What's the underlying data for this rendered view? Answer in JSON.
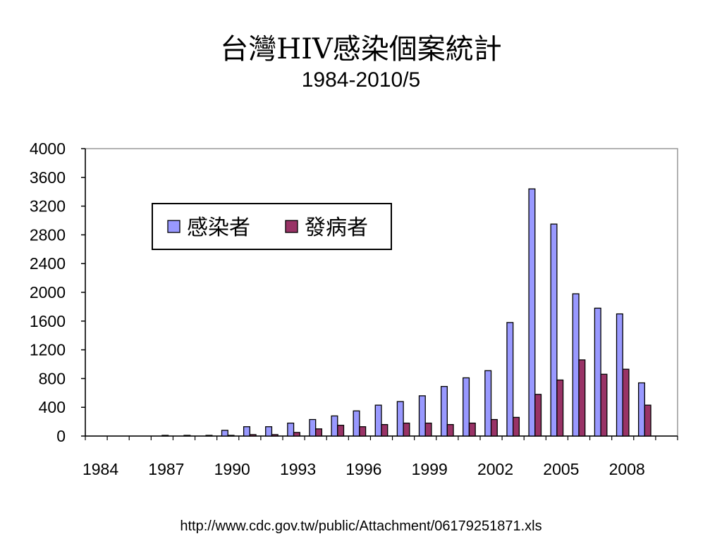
{
  "header": {
    "title": "台灣HIV感染個案統計",
    "subtitle": "1984-2010/5"
  },
  "source": {
    "text": "http://www.cdc.gov.tw/public/Attachment/06179251871.xls"
  },
  "chart_data": {
    "type": "bar",
    "categories": [
      "1984",
      "1985",
      "1986",
      "1987",
      "1988",
      "1989",
      "1990",
      "1991",
      "1992",
      "1993",
      "1994",
      "1995",
      "1996",
      "1997",
      "1998",
      "1999",
      "2000",
      "2001",
      "2002",
      "2003",
      "2004",
      "2005",
      "2006",
      "2007",
      "2008",
      "2009",
      "2010"
    ],
    "x_tick_labels": [
      "1984",
      "1987",
      "1990",
      "1993",
      "1996",
      "1999",
      "2002",
      "2005",
      "2008"
    ],
    "series": [
      {
        "name": "感染者",
        "color": "#9999ff",
        "values": [
          0,
          0,
          0,
          0,
          0,
          0,
          80,
          130,
          130,
          180,
          230,
          280,
          350,
          430,
          480,
          560,
          690,
          810,
          910,
          1580,
          3440,
          2950,
          1980,
          1780,
          1700,
          740,
          0
        ]
      },
      {
        "name": "發病者",
        "color": "#993366",
        "values": [
          0,
          0,
          0,
          10,
          10,
          10,
          10,
          20,
          20,
          50,
          100,
          150,
          130,
          160,
          180,
          180,
          160,
          180,
          230,
          260,
          580,
          780,
          1060,
          860,
          930,
          430,
          0
        ]
      }
    ],
    "ylim": [
      0,
      4000
    ],
    "yticks": [
      0,
      400,
      800,
      1200,
      1600,
      2000,
      2400,
      2800,
      3200,
      3600,
      4000
    ],
    "grid": false,
    "legend": {
      "placement": "top-left",
      "orientation": "horizontal"
    }
  }
}
